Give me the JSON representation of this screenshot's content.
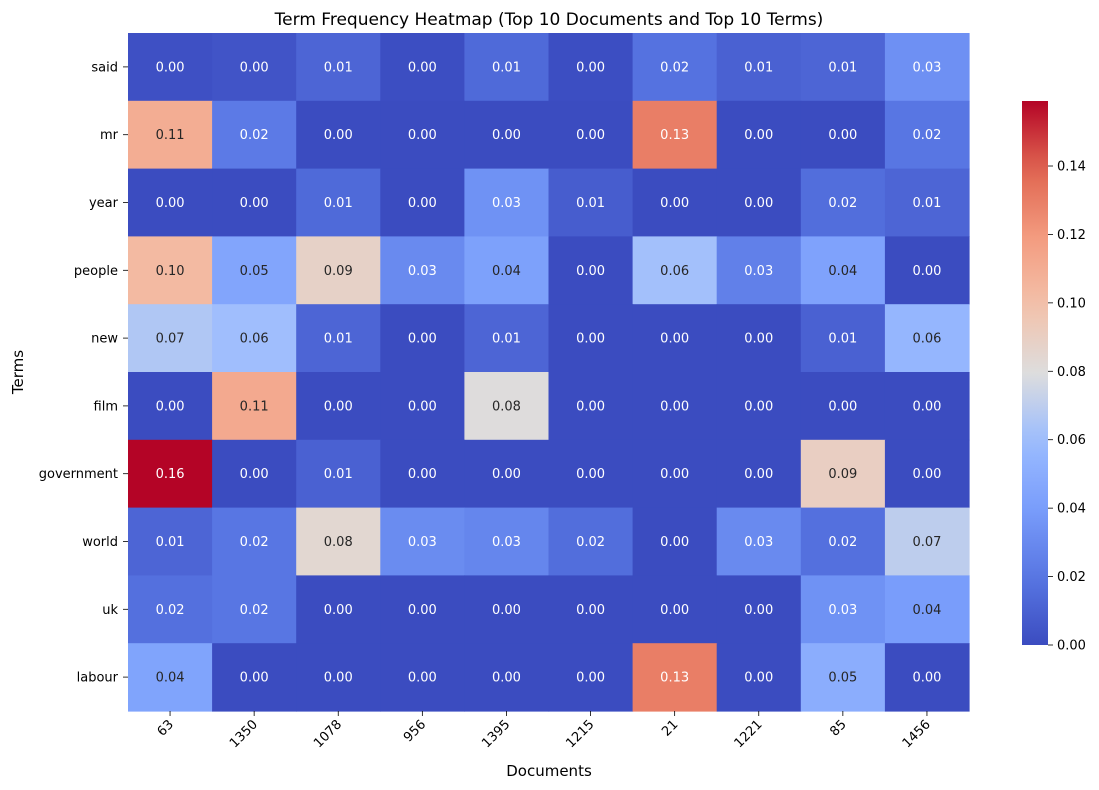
{
  "chart_data": {
    "type": "heatmap",
    "title": "Term Frequency Heatmap (Top 10 Documents and Top 10 Terms)",
    "xlabel": "Documents",
    "ylabel": "Terms",
    "x_categories": [
      "63",
      "1350",
      "1078",
      "956",
      "1395",
      "1215",
      "21",
      "1221",
      "85",
      "1456"
    ],
    "y_categories": [
      "said",
      "mr",
      "year",
      "people",
      "new",
      "film",
      "government",
      "world",
      "uk",
      "labour"
    ],
    "values": [
      [
        0.002,
        0.004,
        0.012,
        0.001,
        0.014,
        0.001,
        0.018,
        0.01,
        0.012,
        0.033
      ],
      [
        0.11,
        0.022,
        0.0,
        0.0,
        0.0,
        0.0,
        0.13,
        0.0,
        0.0,
        0.02
      ],
      [
        0.0,
        0.0,
        0.014,
        0.0,
        0.034,
        0.008,
        0.0,
        0.0,
        0.016,
        0.012
      ],
      [
        0.103,
        0.045,
        0.088,
        0.03,
        0.042,
        0.0,
        0.062,
        0.025,
        0.043,
        0.0
      ],
      [
        0.066,
        0.061,
        0.012,
        0.0,
        0.012,
        0.0,
        0.0,
        0.0,
        0.01,
        0.056
      ],
      [
        0.0,
        0.112,
        0.0,
        0.0,
        0.08,
        0.0,
        0.0,
        0.0,
        0.0,
        0.0
      ],
      [
        0.159,
        0.0,
        0.01,
        0.0,
        0.0,
        0.0,
        0.0,
        0.0,
        0.09,
        0.0
      ],
      [
        0.012,
        0.02,
        0.084,
        0.031,
        0.028,
        0.016,
        0.0,
        0.03,
        0.017,
        0.07
      ],
      [
        0.017,
        0.02,
        0.0,
        0.0,
        0.0,
        0.0,
        0.0,
        0.0,
        0.034,
        0.04
      ],
      [
        0.044,
        0.0,
        0.0,
        0.0,
        0.0,
        0.0,
        0.13,
        0.0,
        0.05,
        0.0
      ]
    ],
    "labels": [
      [
        "0.00",
        "0.00",
        "0.01",
        "0.00",
        "0.01",
        "0.00",
        "0.02",
        "0.01",
        "0.01",
        "0.03"
      ],
      [
        "0.11",
        "0.02",
        "0.00",
        "0.00",
        "0.00",
        "0.00",
        "0.13",
        "0.00",
        "0.00",
        "0.02"
      ],
      [
        "0.00",
        "0.00",
        "0.01",
        "0.00",
        "0.03",
        "0.01",
        "0.00",
        "0.00",
        "0.02",
        "0.01"
      ],
      [
        "0.10",
        "0.05",
        "0.09",
        "0.03",
        "0.04",
        "0.00",
        "0.06",
        "0.03",
        "0.04",
        "0.00"
      ],
      [
        "0.07",
        "0.06",
        "0.01",
        "0.00",
        "0.01",
        "0.00",
        "0.00",
        "0.00",
        "0.01",
        "0.06"
      ],
      [
        "0.00",
        "0.11",
        "0.00",
        "0.00",
        "0.08",
        "0.00",
        "0.00",
        "0.00",
        "0.00",
        "0.00"
      ],
      [
        "0.16",
        "0.00",
        "0.01",
        "0.00",
        "0.00",
        "0.00",
        "0.00",
        "0.00",
        "0.09",
        "0.00"
      ],
      [
        "0.01",
        "0.02",
        "0.08",
        "0.03",
        "0.03",
        "0.02",
        "0.00",
        "0.03",
        "0.02",
        "0.07"
      ],
      [
        "0.02",
        "0.02",
        "0.00",
        "0.00",
        "0.00",
        "0.00",
        "0.00",
        "0.00",
        "0.03",
        "0.04"
      ],
      [
        "0.04",
        "0.00",
        "0.00",
        "0.00",
        "0.00",
        "0.00",
        "0.13",
        "0.00",
        "0.05",
        "0.00"
      ]
    ],
    "colormap": "coolwarm",
    "colorbar": {
      "range": [
        0,
        0.159
      ],
      "ticks": [
        "0.00",
        "0.02",
        "0.04",
        "0.06",
        "0.08",
        "0.10",
        "0.12",
        "0.14"
      ]
    },
    "grid": false
  }
}
